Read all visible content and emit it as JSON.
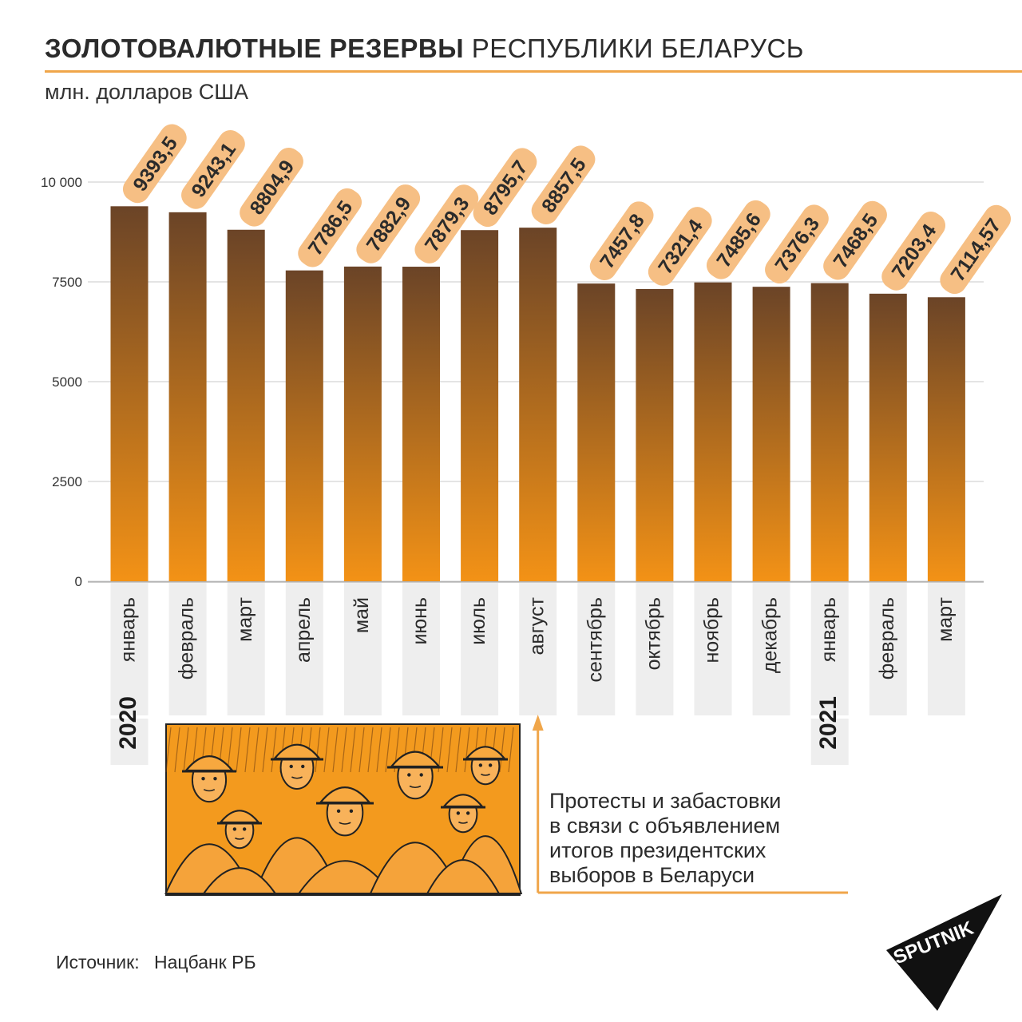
{
  "header": {
    "title_bold": "ЗОЛОТОВАЛЮТНЫЕ РЕЗЕРВЫ",
    "title_normal": "РЕСПУБЛИКИ БЕЛАРУСЬ",
    "unit": "млн. долларов США"
  },
  "colors": {
    "accent": "#f0a64a",
    "bar_top": "#6b4427",
    "bar_bottom": "#f39216",
    "badge_fill": "#f6bf84",
    "gridline": "#c9c9c9",
    "label_band": "#eeeeee"
  },
  "chart_data": {
    "type": "bar",
    "title": "ЗОЛОТОВАЛЮТНЫЕ РЕЗЕРВЫ РЕСПУБЛИКИ БЕЛАРУСЬ",
    "ylabel": "млн. долларов США",
    "ylim": [
      0,
      10000
    ],
    "yticks": [
      "0",
      "2500",
      "5000",
      "7500",
      "10 000"
    ],
    "grid": true,
    "categories": [
      "январь",
      "февраль",
      "март",
      "апрель",
      "май",
      "июнь",
      "июль",
      "август",
      "сентябрь",
      "октябрь",
      "ноябрь",
      "декабрь",
      "январь",
      "февраль",
      "март"
    ],
    "values": [
      9393.5,
      9243.1,
      8804.9,
      7786.5,
      7882.9,
      7879.3,
      8795.7,
      8857.5,
      7457.8,
      7321.4,
      7485.6,
      7376.3,
      7468.5,
      7203.4,
      7114.57
    ],
    "value_labels": [
      "9393,5",
      "9243,1",
      "8804,9",
      "7786,5",
      "7882,9",
      "7879,3",
      "8795,7",
      "8857,5",
      "7457,8",
      "7321,4",
      "7485,6",
      "7376,3",
      "7468,5",
      "7203,4",
      "7114,57"
    ],
    "year_labels": [
      {
        "category_index": 0,
        "text": "2020"
      },
      {
        "category_index": 12,
        "text": "2021"
      }
    ],
    "annotation": {
      "category_index": 7,
      "lines": [
        "Протесты и забастовки",
        "в связи с объявлением",
        "итогов президентских",
        "выборов в Беларуси"
      ]
    }
  },
  "source": {
    "label": "Источник:",
    "value": "Нацбанк РБ"
  },
  "logo": {
    "text": "SPUTNIK"
  }
}
